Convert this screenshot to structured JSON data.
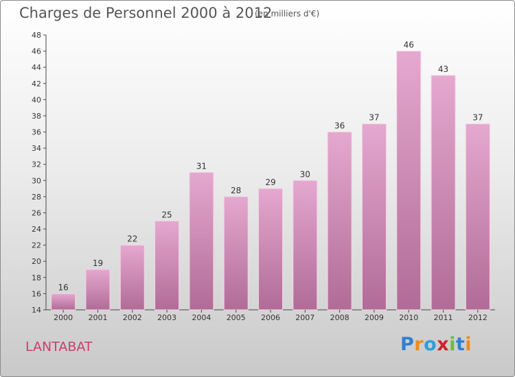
{
  "header": {
    "title": "Charges de Personnel 2000 à 2012",
    "subtitle": "(en milliers d'€)"
  },
  "footer": {
    "commune": "LANTABAT",
    "logo": {
      "text": "Proxiti",
      "letters": [
        {
          "char": "P",
          "color": "#2f7fd6"
        },
        {
          "char": "r",
          "color": "#f08a1c"
        },
        {
          "char": "o",
          "color": "#2f9fd6"
        },
        {
          "char": "x",
          "color": "#d0222a"
        },
        {
          "char": "i",
          "color": "#6cbf2a"
        },
        {
          "char": "t",
          "color": "#2f7fd6"
        },
        {
          "char": "i",
          "color": "#f08a1c"
        }
      ]
    }
  },
  "colors": {
    "bar_top": "#e5a8cf",
    "bar_bottom": "#b06c96",
    "commune_text": "#d03a6d"
  },
  "chart_data": {
    "type": "bar",
    "categories": [
      "2000",
      "2001",
      "2002",
      "2003",
      "2004",
      "2005",
      "2006",
      "2007",
      "2008",
      "2009",
      "2010",
      "2011",
      "2012"
    ],
    "values": [
      16,
      19,
      22,
      25,
      31,
      28,
      29,
      30,
      36,
      37,
      46,
      43,
      37
    ],
    "ylim": [
      14,
      48
    ],
    "yticks": [
      14,
      16,
      18,
      20,
      22,
      24,
      26,
      28,
      30,
      32,
      34,
      36,
      38,
      40,
      42,
      44,
      46,
      48
    ],
    "grid": false,
    "legend": "none"
  }
}
